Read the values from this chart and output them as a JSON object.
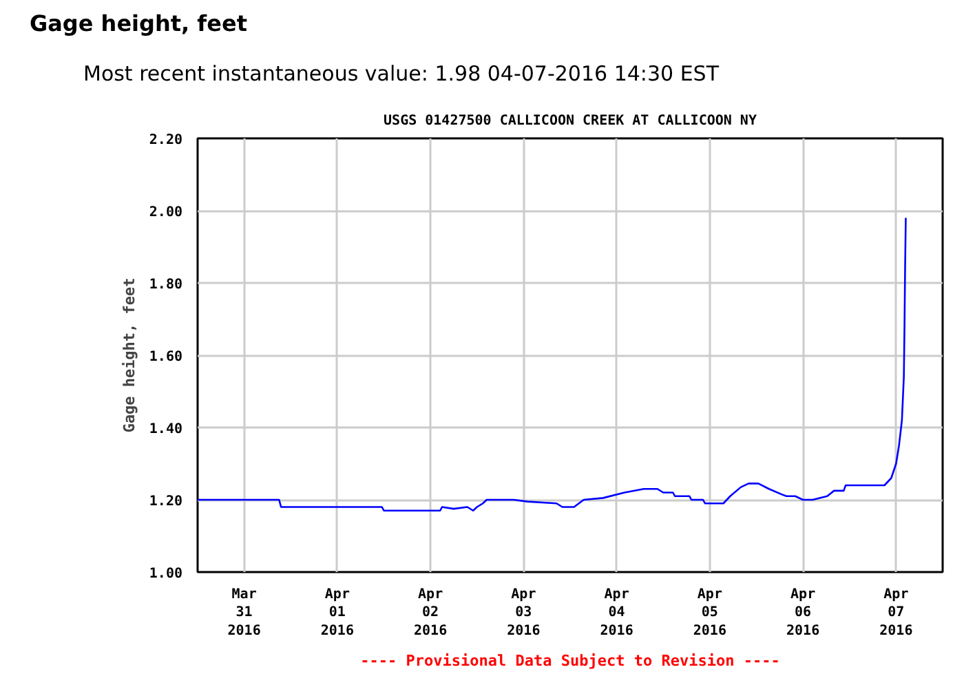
{
  "chart_data": {
    "type": "line",
    "title": "Gage height, feet",
    "subtitle": "Most recent instantaneous value: 1.98   04-07-2016  14:30 EST",
    "annotations": [
      "USGS 01427500 CALLICOON CREEK AT CALLICOON NY",
      "---- Provisional Data Subject to Revision ----"
    ],
    "ylabel": "Gage height, feet",
    "x": [
      "2016-03-31T00:00",
      "2016-03-31T21:00",
      "2016-03-31T21:30",
      "2016-04-01T23:30",
      "2016-04-02T00:00",
      "2016-04-02T14:30",
      "2016-04-02T15:00",
      "2016-04-02T18:00",
      "2016-04-02T21:30",
      "2016-04-02T23:00",
      "2016-04-03T00:00",
      "2016-04-03T01:30",
      "2016-04-03T02:30",
      "2016-04-03T09:30",
      "2016-04-03T13:00",
      "2016-04-03T20:30",
      "2016-04-03T22:00",
      "2016-04-04T01:00",
      "2016-04-04T03:30",
      "2016-04-04T08:30",
      "2016-04-04T14:00",
      "2016-04-04T19:00",
      "2016-04-04T22:30",
      "2016-04-05T00:00",
      "2016-04-05T02:30",
      "2016-04-05T03:00",
      "2016-04-05T06:45",
      "2016-04-05T07:15",
      "2016-04-05T10:15",
      "2016-04-05T10:45",
      "2016-04-05T15:30",
      "2016-04-05T17:15",
      "2016-04-05T20:00",
      "2016-04-05T22:00",
      "2016-04-06T00:30",
      "2016-04-06T03:15",
      "2016-04-06T06:30",
      "2016-04-06T07:45",
      "2016-04-06T10:00",
      "2016-04-06T12:00",
      "2016-04-06T14:30",
      "2016-04-06T18:15",
      "2016-04-06T20:00",
      "2016-04-06T22:30",
      "2016-04-06T23:00",
      "2016-04-07T09:00",
      "2016-04-07T10:45",
      "2016-04-07T12:00",
      "2016-04-07T12:45",
      "2016-04-07T13:30",
      "2016-04-07T14:00",
      "2016-04-07T14:10",
      "2016-04-07T14:20",
      "2016-04-07T14:30"
    ],
    "series": [
      {
        "color": "#0000ff",
        "values": [
          1.2,
          1.2,
          1.18,
          1.18,
          1.17,
          1.17,
          1.18,
          1.175,
          1.18,
          1.17,
          1.18,
          1.19,
          1.2,
          1.2,
          1.195,
          1.19,
          1.18,
          1.18,
          1.2,
          1.205,
          1.22,
          1.23,
          1.23,
          1.22,
          1.22,
          1.21,
          1.21,
          1.2,
          1.2,
          1.19,
          1.19,
          1.21,
          1.235,
          1.245,
          1.245,
          1.23,
          1.215,
          1.21,
          1.21,
          1.2,
          1.2,
          1.21,
          1.225,
          1.225,
          1.24,
          1.24,
          1.26,
          1.3,
          1.35,
          1.42,
          1.54,
          1.68,
          1.85,
          1.98
        ]
      }
    ],
    "xlim": [
      "2016-03-31T00:00",
      "2016-04-08T00:00"
    ],
    "xticks": [
      {
        "value": "2016-03-31T12:00",
        "label": "Mar\n31\n2016"
      },
      {
        "value": "2016-04-01T12:00",
        "label": "Apr\n01\n2016"
      },
      {
        "value": "2016-04-02T12:00",
        "label": "Apr\n02\n2016"
      },
      {
        "value": "2016-04-03T12:00",
        "label": "Apr\n03\n2016"
      },
      {
        "value": "2016-04-04T12:00",
        "label": "Apr\n04\n2016"
      },
      {
        "value": "2016-04-05T12:00",
        "label": "Apr\n05\n2016"
      },
      {
        "value": "2016-04-06T12:00",
        "label": "Apr\n06\n2016"
      },
      {
        "value": "2016-04-07T12:00",
        "label": "Apr\n07\n2016"
      }
    ],
    "ylim": [
      1.0,
      2.2
    ],
    "yticks": [
      {
        "value": 1.0,
        "label": "1.00"
      },
      {
        "value": 1.2,
        "label": "1.20"
      },
      {
        "value": 1.4,
        "label": "1.40"
      },
      {
        "value": 1.6,
        "label": "1.60"
      },
      {
        "value": 1.8,
        "label": "1.80"
      },
      {
        "value": 2.0,
        "label": "2.00"
      },
      {
        "value": 2.2,
        "label": "2.20"
      }
    ],
    "grid": true,
    "marker": "none",
    "line_style": "solid"
  }
}
